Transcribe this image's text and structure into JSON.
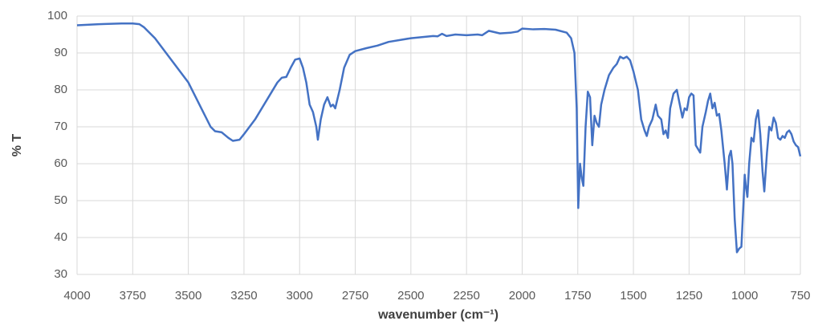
{
  "chart_data": {
    "type": "line",
    "xlabel": "wavenumber (cm⁻¹)",
    "ylabel": "% T",
    "xlim": [
      4000,
      750
    ],
    "ylim": [
      30,
      100
    ],
    "xticks": [
      4000,
      3750,
      3500,
      3250,
      3000,
      2750,
      2500,
      2250,
      2000,
      1750,
      1500,
      1250,
      1000,
      750
    ],
    "yticks": [
      30,
      40,
      50,
      60,
      70,
      80,
      90,
      100
    ],
    "grid": true,
    "x": [
      4000,
      3900,
      3800,
      3750,
      3720,
      3700,
      3650,
      3600,
      3550,
      3500,
      3450,
      3400,
      3380,
      3350,
      3320,
      3300,
      3270,
      3250,
      3200,
      3150,
      3100,
      3080,
      3060,
      3040,
      3020,
      3000,
      2985,
      2970,
      2955,
      2940,
      2925,
      2918,
      2905,
      2890,
      2875,
      2860,
      2850,
      2840,
      2820,
      2800,
      2775,
      2750,
      2700,
      2650,
      2600,
      2500,
      2400,
      2380,
      2360,
      2340,
      2300,
      2250,
      2200,
      2180,
      2150,
      2100,
      2050,
      2020,
      2000,
      1950,
      1900,
      1850,
      1800,
      1780,
      1765,
      1755,
      1748,
      1740,
      1732,
      1725,
      1715,
      1705,
      1695,
      1685,
      1675,
      1665,
      1655,
      1645,
      1630,
      1610,
      1590,
      1575,
      1560,
      1545,
      1530,
      1515,
      1500,
      1480,
      1465,
      1450,
      1440,
      1430,
      1415,
      1400,
      1390,
      1375,
      1365,
      1355,
      1345,
      1335,
      1320,
      1305,
      1295,
      1280,
      1270,
      1260,
      1250,
      1240,
      1230,
      1220,
      1210,
      1200,
      1190,
      1175,
      1165,
      1155,
      1145,
      1135,
      1125,
      1115,
      1105,
      1090,
      1080,
      1070,
      1062,
      1055,
      1045,
      1035,
      1025,
      1015,
      1005,
      1000,
      995,
      988,
      980,
      970,
      960,
      950,
      940,
      930,
      920,
      912,
      900,
      890,
      880,
      870,
      860,
      850,
      840,
      830,
      820,
      810,
      800,
      790,
      780,
      770,
      760,
      750
    ],
    "series": [
      {
        "color": "#4472c4",
        "values": [
          97.5,
          97.8,
          98,
          98,
          97.8,
          97,
          94,
          90,
          86,
          82,
          76,
          70,
          68.8,
          68.5,
          67,
          66.2,
          66.5,
          68,
          72,
          77,
          82,
          83.3,
          83.5,
          86,
          88.2,
          88.5,
          86,
          82,
          76,
          74,
          70,
          66.5,
          72,
          76,
          78,
          75.5,
          76,
          75,
          80,
          86,
          89.5,
          90.5,
          91.3,
          92,
          93,
          94,
          94.6,
          94.5,
          95.2,
          94.6,
          95,
          94.8,
          95,
          94.8,
          96,
          95.3,
          95.5,
          95.8,
          96.6,
          96.4,
          96.5,
          96.3,
          95.5,
          94,
          90,
          75,
          48,
          60,
          56,
          54,
          70,
          79.5,
          78,
          65,
          73,
          71,
          70,
          76,
          80,
          84,
          86,
          87,
          89,
          88.5,
          89,
          88,
          85,
          80,
          72,
          69,
          67.5,
          70,
          72,
          76,
          73,
          72,
          68,
          69,
          67,
          75,
          79,
          80,
          77,
          72.5,
          75,
          74.5,
          78,
          79,
          78.5,
          65,
          64,
          63,
          70,
          74,
          77,
          79,
          75,
          76.5,
          73,
          73.5,
          69,
          60,
          53,
          62,
          63.5,
          60,
          45,
          36,
          37,
          37.5,
          50,
          57,
          54,
          51,
          60,
          67,
          66,
          72,
          74.5,
          68,
          58,
          52.5,
          63,
          70,
          69,
          72.5,
          71,
          67,
          66.5,
          67.5,
          67,
          68.5,
          69,
          68,
          66,
          65,
          64.5,
          62
        ]
      }
    ]
  }
}
